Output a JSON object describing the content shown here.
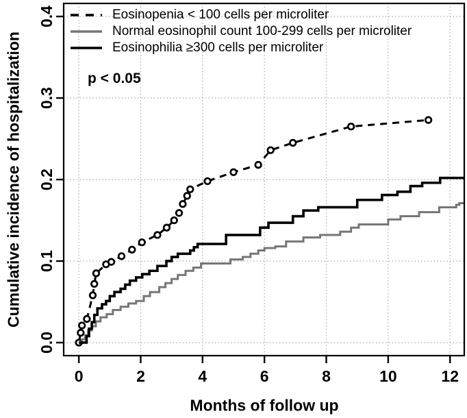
{
  "chart_data": {
    "type": "line",
    "title": "",
    "xlabel": "Months of follow up",
    "ylabel": "Cumulative incidence of hospitalization",
    "annotation": {
      "text": "p < 0.05"
    },
    "xlim": [
      -0.49,
      12.46
    ],
    "ylim": [
      -0.016,
      0.416
    ],
    "xticks": [
      0,
      2,
      4,
      6,
      8,
      10,
      12
    ],
    "xtick_labels": [
      "0",
      "2",
      "4",
      "6",
      "8",
      "10",
      "12"
    ],
    "yticks": [
      0.0,
      0.1,
      0.2,
      0.3,
      0.4
    ],
    "ytick_labels": [
      "0.0",
      "0.1",
      "0.2",
      "0.3",
      "0.4"
    ],
    "grid": true,
    "grid_color": "#a8a8a8",
    "axis_color": "#000000",
    "background_color": "#ffffff",
    "legend_position": "top-left",
    "series": [
      {
        "name": "Eosinopenia < 100 cells per microliter",
        "color": "#000000",
        "line": "dashed",
        "marker": "circle",
        "marker_fill": "#ffffff",
        "step": false,
        "width": 3,
        "points": [
          [
            0,
            0
          ],
          [
            0.06,
            0.012
          ],
          [
            0.1,
            0.021
          ],
          [
            0.26,
            0.029
          ],
          [
            0.45,
            0.058
          ],
          [
            0.5,
            0.072
          ],
          [
            0.56,
            0.085
          ],
          [
            0.88,
            0.096
          ],
          [
            1.05,
            0.099
          ],
          [
            1.38,
            0.106
          ],
          [
            1.72,
            0.114
          ],
          [
            2.04,
            0.123
          ],
          [
            2.54,
            0.132
          ],
          [
            2.84,
            0.141
          ],
          [
            3.08,
            0.15
          ],
          [
            3.24,
            0.159
          ],
          [
            3.36,
            0.17
          ],
          [
            3.5,
            0.18
          ],
          [
            3.6,
            0.188
          ],
          [
            4.16,
            0.198
          ],
          [
            5.0,
            0.209
          ],
          [
            5.8,
            0.218
          ],
          [
            6.2,
            0.236
          ],
          [
            6.92,
            0.245
          ],
          [
            8.8,
            0.265
          ],
          [
            11.3,
            0.273
          ]
        ]
      },
      {
        "name": "Normal eosinophil count 100-299 cells per microliter",
        "color": "#767676",
        "line": "solid",
        "marker": "none",
        "step": true,
        "width": 3,
        "points": [
          [
            0,
            0
          ],
          [
            0.1,
            0.004
          ],
          [
            0.2,
            0.009
          ],
          [
            0.3,
            0.015
          ],
          [
            0.42,
            0.02
          ],
          [
            0.55,
            0.026
          ],
          [
            0.7,
            0.031
          ],
          [
            0.9,
            0.035
          ],
          [
            1.1,
            0.04
          ],
          [
            1.35,
            0.044
          ],
          [
            1.6,
            0.048
          ],
          [
            1.85,
            0.051
          ],
          [
            2.1,
            0.057
          ],
          [
            2.3,
            0.062
          ],
          [
            2.6,
            0.068
          ],
          [
            2.8,
            0.073
          ],
          [
            3.0,
            0.078
          ],
          [
            3.2,
            0.083
          ],
          [
            3.45,
            0.088
          ],
          [
            3.7,
            0.092
          ],
          [
            3.95,
            0.097
          ],
          [
            4.9,
            0.102
          ],
          [
            5.3,
            0.105
          ],
          [
            5.55,
            0.109
          ],
          [
            5.8,
            0.113
          ],
          [
            6.0,
            0.116
          ],
          [
            6.35,
            0.118
          ],
          [
            6.7,
            0.124
          ],
          [
            7.26,
            0.129
          ],
          [
            7.8,
            0.132
          ],
          [
            8.45,
            0.136
          ],
          [
            8.8,
            0.141
          ],
          [
            9.05,
            0.145
          ],
          [
            10.0,
            0.151
          ],
          [
            10.4,
            0.155
          ],
          [
            11.0,
            0.16
          ],
          [
            11.65,
            0.166
          ],
          [
            12.2,
            0.169
          ],
          [
            12.3,
            0.171
          ]
        ]
      },
      {
        "name": "Eosinophilia ≥300 cells per microliter",
        "color": "#000000",
        "line": "solid",
        "marker": "none",
        "step": true,
        "width": 3.6,
        "points": [
          [
            0,
            0
          ],
          [
            0.25,
            0.008
          ],
          [
            0.33,
            0.017
          ],
          [
            0.42,
            0.025
          ],
          [
            0.5,
            0.034
          ],
          [
            0.6,
            0.042
          ],
          [
            0.75,
            0.047
          ],
          [
            0.88,
            0.051
          ],
          [
            1.0,
            0.057
          ],
          [
            1.15,
            0.062
          ],
          [
            1.35,
            0.066
          ],
          [
            1.5,
            0.071
          ],
          [
            1.65,
            0.076
          ],
          [
            1.85,
            0.08
          ],
          [
            2.05,
            0.084
          ],
          [
            2.28,
            0.088
          ],
          [
            2.54,
            0.094
          ],
          [
            2.83,
            0.1
          ],
          [
            3.0,
            0.105
          ],
          [
            3.2,
            0.109
          ],
          [
            3.6,
            0.113
          ],
          [
            3.72,
            0.117
          ],
          [
            3.84,
            0.121
          ],
          [
            4.76,
            0.132
          ],
          [
            5.86,
            0.141
          ],
          [
            6.13,
            0.147
          ],
          [
            6.92,
            0.155
          ],
          [
            7.26,
            0.162
          ],
          [
            7.74,
            0.166
          ],
          [
            9.0,
            0.175
          ],
          [
            9.8,
            0.181
          ],
          [
            10.3,
            0.185
          ],
          [
            10.72,
            0.192
          ],
          [
            11.1,
            0.196
          ],
          [
            11.68,
            0.202
          ]
        ]
      }
    ]
  }
}
